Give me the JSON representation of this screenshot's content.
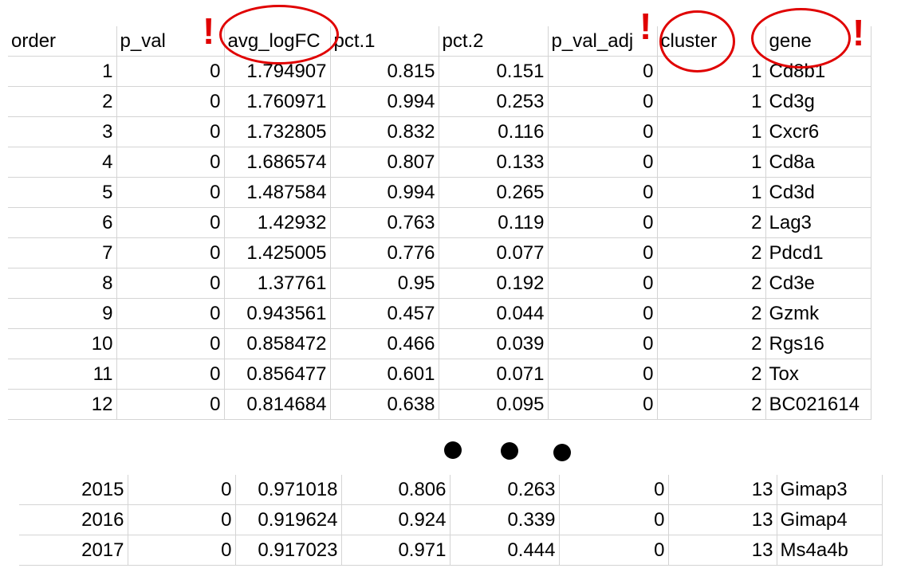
{
  "columns": [
    "order",
    "p_val",
    "avg_logFC",
    "pct.1",
    "pct.2",
    "p_val_adj",
    "cluster",
    "gene"
  ],
  "rows_top": [
    [
      "1",
      "0",
      "1.794907",
      "0.815",
      "0.151",
      "0",
      "1",
      "Cd8b1"
    ],
    [
      "2",
      "0",
      "1.760971",
      "0.994",
      "0.253",
      "0",
      "1",
      "Cd3g"
    ],
    [
      "3",
      "0",
      "1.732805",
      "0.832",
      "0.116",
      "0",
      "1",
      "Cxcr6"
    ],
    [
      "4",
      "0",
      "1.686574",
      "0.807",
      "0.133",
      "0",
      "1",
      "Cd8a"
    ],
    [
      "5",
      "0",
      "1.487584",
      "0.994",
      "0.265",
      "0",
      "1",
      "Cd3d"
    ],
    [
      "6",
      "0",
      "1.42932",
      "0.763",
      "0.119",
      "0",
      "2",
      "Lag3"
    ],
    [
      "7",
      "0",
      "1.425005",
      "0.776",
      "0.077",
      "0",
      "2",
      "Pdcd1"
    ],
    [
      "8",
      "0",
      "1.37761",
      "0.95",
      "0.192",
      "0",
      "2",
      "Cd3e"
    ],
    [
      "9",
      "0",
      "0.943561",
      "0.457",
      "0.044",
      "0",
      "2",
      "Gzmk"
    ],
    [
      "10",
      "0",
      "0.858472",
      "0.466",
      "0.039",
      "0",
      "2",
      "Rgs16"
    ],
    [
      "11",
      "0",
      "0.856477",
      "0.601",
      "0.071",
      "0",
      "2",
      "Tox"
    ],
    [
      "12",
      "0",
      "0.814684",
      "0.638",
      "0.095",
      "0",
      "2",
      "BC021614"
    ]
  ],
  "rows_bottom": [
    [
      "2015",
      "0",
      "0.971018",
      "0.806",
      "0.263",
      "0",
      "13",
      "Gimap3"
    ],
    [
      "2016",
      "0",
      "0.919624",
      "0.924",
      "0.339",
      "0",
      "13",
      "Gimap4"
    ],
    [
      "2017",
      "0",
      "0.917023",
      "0.971",
      "0.444",
      "0",
      "13",
      "Ms4a4b"
    ]
  ],
  "annotations": {
    "exclamation": "!",
    "highlighted_columns": [
      "avg_logFC",
      "cluster",
      "gene"
    ],
    "highlight_color": "#e00000"
  }
}
